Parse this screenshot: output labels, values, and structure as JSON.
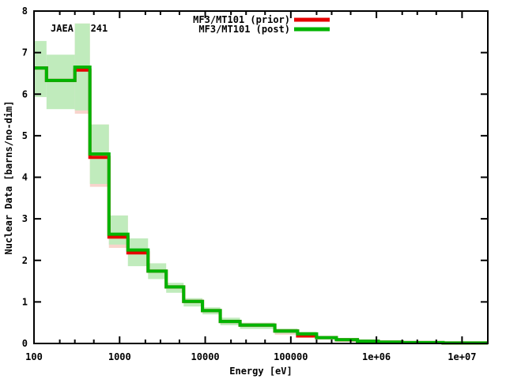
{
  "figure": {
    "background": "#ffffff",
    "text_color": "#000000"
  },
  "chart_data": {
    "type": "line",
    "style": "steps-histogram-with-uncertainty-band",
    "title": "",
    "xlabel": "Energy [eV]",
    "ylabel": "Nuclear Data [barns/no-dim]",
    "annotation": "JAEA   241",
    "x_scale": "log",
    "y_scale": "linear",
    "xlim": [
      100,
      20000000
    ],
    "ylim": [
      0,
      8
    ],
    "grid": false,
    "legend_position": "top-center-outside-right",
    "x_ticks": [
      {
        "value": 100,
        "label": "100"
      },
      {
        "value": 1000,
        "label": "1000"
      },
      {
        "value": 10000,
        "label": "10000"
      },
      {
        "value": 100000,
        "label": "100000"
      },
      {
        "value": 1000000,
        "label": "1e+06"
      },
      {
        "value": 10000000,
        "label": "1e+07"
      }
    ],
    "x_minor_tick_multipliers": [
      2,
      3,
      5
    ],
    "y_ticks": [
      {
        "value": 0,
        "label": "0"
      },
      {
        "value": 1,
        "label": "1"
      },
      {
        "value": 2,
        "label": "2"
      },
      {
        "value": 3,
        "label": "3"
      },
      {
        "value": 4,
        "label": "4"
      },
      {
        "value": 5,
        "label": "5"
      },
      {
        "value": 6,
        "label": "6"
      },
      {
        "value": 7,
        "label": "7"
      },
      {
        "value": 8,
        "label": "8"
      }
    ],
    "series": [
      {
        "name": "MF3/MT101 (prior)",
        "color": "#e60000",
        "band_color": "#f8d4cc"
      },
      {
        "name": "MF3/MT101 (post)",
        "color": "#00b400",
        "band_color": "#c0ebbc"
      }
    ],
    "group_edges_eV": [
      100,
      140,
      300,
      450,
      750,
      1250,
      2150,
      3500,
      5600,
      9300,
      15000,
      25500,
      65000,
      120000,
      200000,
      340000,
      600000,
      1050000,
      2000000,
      6000000,
      20000000
    ],
    "post_values": [
      6.63,
      6.33,
      6.65,
      4.56,
      2.63,
      2.25,
      1.74,
      1.36,
      1.01,
      0.79,
      0.53,
      0.44,
      0.3,
      0.23,
      0.14,
      0.09,
      0.055,
      0.035,
      0.02,
      0.012
    ],
    "prior_values": [
      6.63,
      6.33,
      6.58,
      4.48,
      2.56,
      2.18,
      1.74,
      1.36,
      1.01,
      0.79,
      0.53,
      0.44,
      0.3,
      0.18,
      0.14,
      0.09,
      0.055,
      0.035,
      0.02,
      0.012
    ],
    "post_band_lo": [
      5.93,
      5.64,
      5.61,
      3.84,
      2.38,
      1.86,
      1.55,
      1.22,
      0.89,
      0.7,
      0.44,
      0.35,
      0.24,
      0.18,
      0.1,
      0.06,
      0.03,
      0.02,
      0.01,
      0.005
    ],
    "post_band_hi": [
      7.28,
      6.95,
      7.7,
      5.27,
      3.08,
      2.53,
      1.93,
      1.46,
      1.09,
      0.87,
      0.62,
      0.5,
      0.36,
      0.28,
      0.18,
      0.12,
      0.08,
      0.055,
      0.035,
      0.025
    ],
    "prior_band_lo": [
      null,
      null,
      5.53,
      3.77,
      2.3,
      null,
      null,
      null,
      null,
      null,
      null,
      null,
      0.21,
      0.14,
      null,
      0.04,
      null,
      null,
      null,
      null
    ]
  }
}
